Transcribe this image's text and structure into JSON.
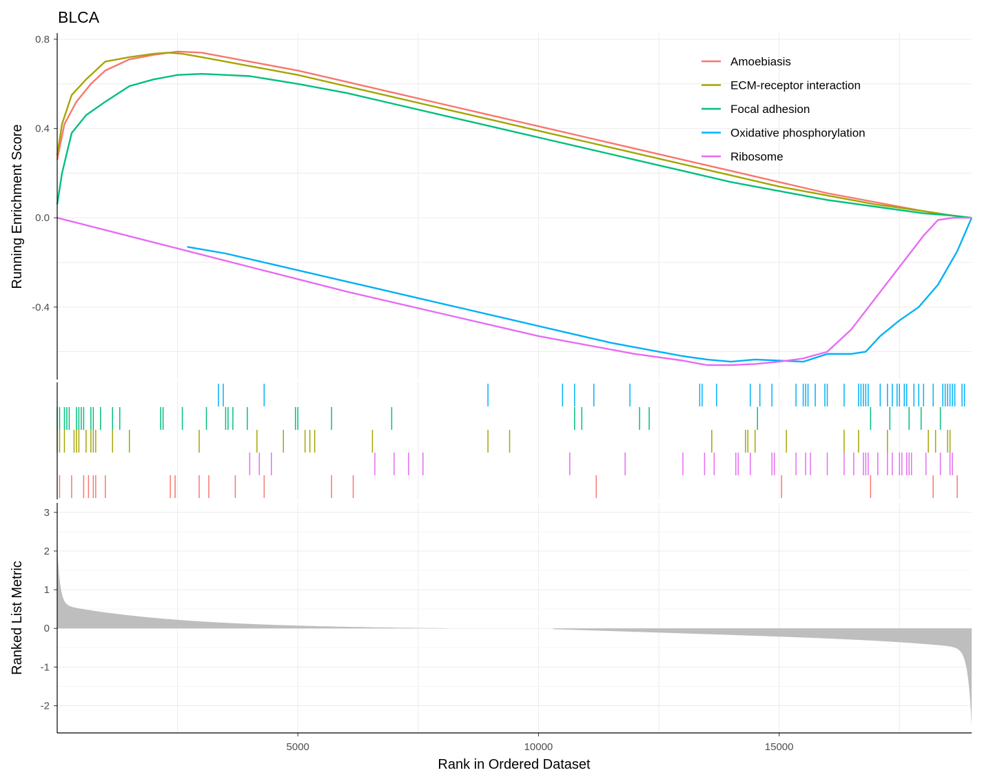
{
  "chart_data": {
    "type": "line",
    "title": "BLCA",
    "xlabel": "Rank in Ordered Dataset",
    "xlim": [
      0,
      19000
    ],
    "x_ticks": [
      5000,
      10000,
      15000
    ],
    "x_tick_labels": [
      "5000",
      "10000",
      "15000"
    ],
    "legend_position": "top-right",
    "panels": {
      "enrichment": {
        "ylabel": "Running Enrichment Score",
        "ylim": [
          -0.66,
          0.8
        ],
        "y_ticks": [
          0.8,
          0.4,
          0.0,
          -0.4
        ],
        "y_tick_labels": [
          "0.8",
          "0.4",
          "0.0",
          "-0.4"
        ]
      },
      "hits": {
        "row_order": [
          "Oxidative phosphorylation",
          "Focal adhesion",
          "ECM-receptor interaction",
          "Ribosome",
          "Amoebiasis"
        ]
      },
      "ranked": {
        "ylabel": "Ranked List Metric",
        "ylim": [
          -2.4,
          3.05
        ],
        "y_ticks": [
          3,
          2,
          1,
          0,
          -1,
          -2
        ],
        "y_tick_labels": [
          "3",
          "2",
          "1",
          "0",
          "-1",
          "-2"
        ],
        "fill_color": "#bebebe",
        "gap": [
          8100,
          10300
        ]
      }
    },
    "series": [
      {
        "name": "Amoebiasis",
        "color": "#F8766D",
        "x": [
          0,
          150,
          400,
          700,
          1000,
          1500,
          2000,
          2500,
          3000,
          4000,
          5000,
          6000,
          7000,
          8000,
          9000,
          10000,
          11000,
          12000,
          13000,
          14000,
          15000,
          16000,
          17000,
          18000,
          18600,
          19000
        ],
        "y": [
          0.26,
          0.42,
          0.52,
          0.6,
          0.66,
          0.71,
          0.73,
          0.745,
          0.74,
          0.7,
          0.66,
          0.61,
          0.56,
          0.51,
          0.46,
          0.41,
          0.36,
          0.31,
          0.26,
          0.21,
          0.16,
          0.11,
          0.07,
          0.03,
          0.01,
          0.0
        ]
      },
      {
        "name": "ECM-receptor interaction",
        "color": "#A3A500",
        "x": [
          0,
          100,
          300,
          600,
          1000,
          1500,
          2000,
          2300,
          2600,
          3000,
          4000,
          5000,
          6000,
          7000,
          8000,
          9000,
          10000,
          11000,
          12000,
          13000,
          14000,
          15000,
          16000,
          17000,
          18000,
          18600,
          19000
        ],
        "y": [
          0.28,
          0.42,
          0.55,
          0.62,
          0.7,
          0.72,
          0.735,
          0.74,
          0.735,
          0.72,
          0.68,
          0.64,
          0.59,
          0.54,
          0.49,
          0.44,
          0.39,
          0.34,
          0.29,
          0.24,
          0.19,
          0.14,
          0.1,
          0.06,
          0.03,
          0.01,
          0.0
        ]
      },
      {
        "name": "Focal adhesion",
        "color": "#00BF7D",
        "x": [
          0,
          100,
          300,
          600,
          1000,
          1500,
          2000,
          2500,
          3000,
          3500,
          4000,
          5000,
          6000,
          7000,
          8000,
          9000,
          10000,
          11000,
          12000,
          13000,
          14000,
          15000,
          16000,
          17000,
          18000,
          18600,
          19000
        ],
        "y": [
          0.06,
          0.2,
          0.38,
          0.46,
          0.52,
          0.59,
          0.62,
          0.64,
          0.645,
          0.64,
          0.635,
          0.6,
          0.56,
          0.51,
          0.46,
          0.41,
          0.36,
          0.31,
          0.26,
          0.21,
          0.16,
          0.12,
          0.08,
          0.05,
          0.02,
          0.01,
          0.0
        ]
      },
      {
        "name": "Oxidative phosphorylation",
        "color": "#00B0F6",
        "x": [
          2700,
          3500,
          4500,
          5500,
          6500,
          7500,
          8500,
          9500,
          10500,
          11500,
          12500,
          13000,
          13500,
          14000,
          14500,
          15000,
          15500,
          16000,
          16500,
          16800,
          17100,
          17500,
          17900,
          18300,
          18700,
          19000
        ],
        "y": [
          -0.13,
          -0.16,
          -0.21,
          -0.26,
          -0.31,
          -0.36,
          -0.41,
          -0.46,
          -0.51,
          -0.56,
          -0.6,
          -0.62,
          -0.635,
          -0.645,
          -0.635,
          -0.64,
          -0.645,
          -0.61,
          -0.61,
          -0.6,
          -0.53,
          -0.46,
          -0.4,
          -0.3,
          -0.15,
          0.0
        ]
      },
      {
        "name": "Ribosome",
        "color": "#E76BF3",
        "x": [
          0,
          2000,
          4000,
          6000,
          8000,
          10000,
          12000,
          13000,
          13500,
          14000,
          14500,
          15000,
          15500,
          16000,
          16500,
          17000,
          17500,
          18000,
          18300,
          18600,
          19000
        ],
        "y": [
          0.0,
          -0.11,
          -0.22,
          -0.33,
          -0.43,
          -0.53,
          -0.61,
          -0.64,
          -0.66,
          -0.66,
          -0.655,
          -0.645,
          -0.63,
          -0.6,
          -0.5,
          -0.36,
          -0.22,
          -0.08,
          -0.01,
          0.0,
          0.0
        ]
      }
    ]
  }
}
